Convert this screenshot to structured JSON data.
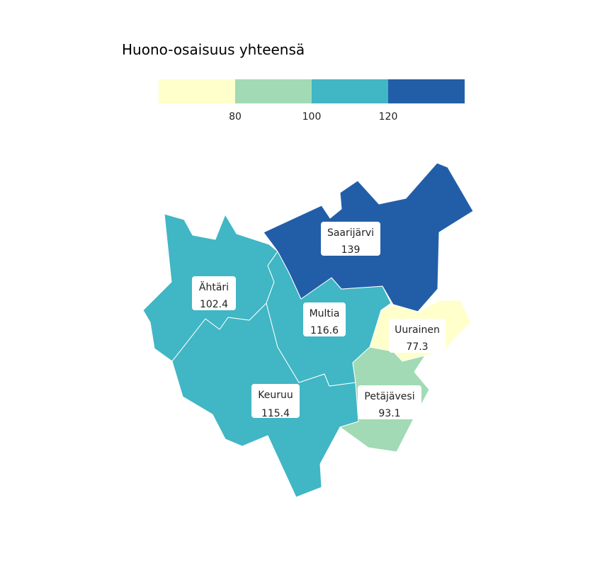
{
  "legend": {
    "title": "Huono-osaisuus yhteensä",
    "ticks": [
      "80",
      "100",
      "120"
    ],
    "colors": [
      "#ffffcc",
      "#a1dab4",
      "#41b6c4",
      "#225ea8"
    ]
  },
  "regions": [
    {
      "id": "keuruu",
      "name": "Keuruu",
      "value": "115.4",
      "color": "#41b6c4"
    },
    {
      "id": "ahtari",
      "name": "Ähtäri",
      "value": "102.4",
      "color": "#41b6c4"
    },
    {
      "id": "multia",
      "name": "Multia",
      "value": "116.6",
      "color": "#41b6c4"
    },
    {
      "id": "saarijarvi",
      "name": "Saarijärvi",
      "value": "139",
      "color": "#225ea8"
    },
    {
      "id": "uurainen",
      "name": "Uurainen",
      "value": "77.3",
      "color": "#ffffcc"
    },
    {
      "id": "petajavesi",
      "name": "Petäjävesi",
      "value": "93.1",
      "color": "#a1dab4"
    }
  ]
}
